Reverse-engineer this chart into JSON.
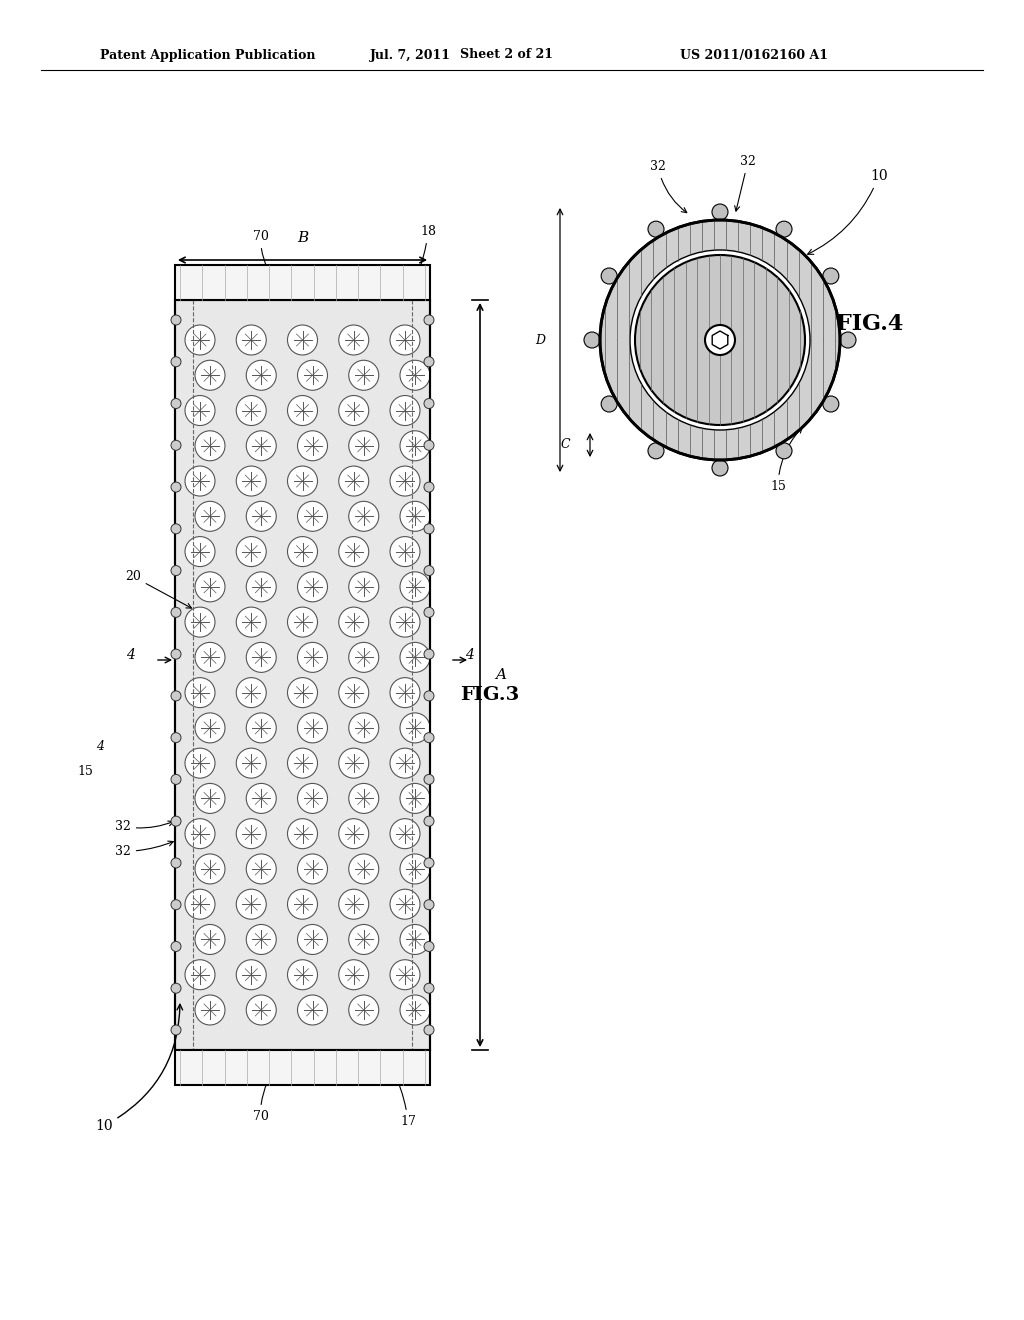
{
  "bg_color": "#ffffff",
  "header_text_left": "Patent Application Publication",
  "header_text_mid": "Jul. 7, 2011",
  "header_text_mid2": "Sheet 2 of 21",
  "header_text_right": "US 2011/0162160 A1",
  "fig3_label": "FIG.3",
  "fig4_label": "FIG.4",
  "label_B": "B",
  "label_A": "A",
  "label_70_top": "70",
  "label_18": "18",
  "label_70_bot": "70",
  "label_17": "17",
  "label_20": "20",
  "label_4a": "4",
  "label_4b": "4",
  "label_15a": "15",
  "label_10": "10",
  "label_32a": "32",
  "label_32b": "32",
  "label_15b": "15",
  "label_C": "C",
  "label_D": "D",
  "label_32c": "32",
  "label_32d": "32",
  "label_10b": "10"
}
